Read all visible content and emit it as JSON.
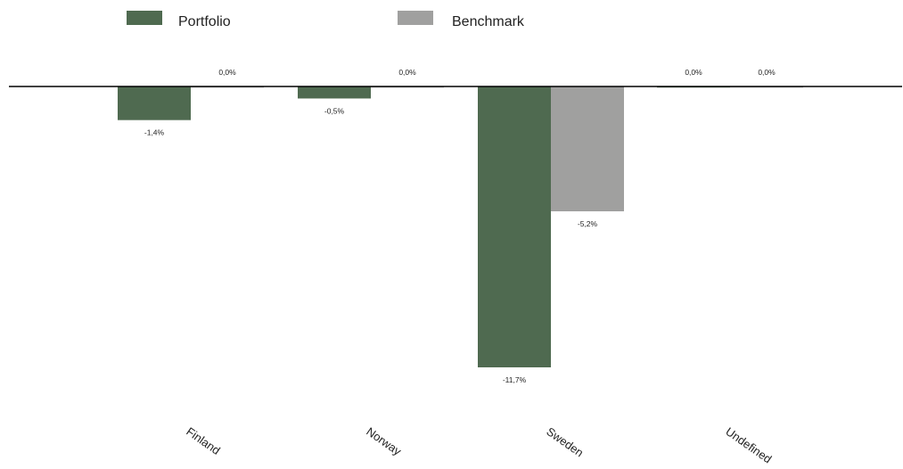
{
  "chart_data": {
    "type": "bar",
    "title": "",
    "xlabel": "",
    "ylabel": "",
    "categories": [
      "Finland",
      "Norway",
      "Sweden",
      "Undefined"
    ],
    "series": [
      {
        "name": "Portfolio",
        "color": "#4f6a50",
        "values": [
          -1.4,
          -0.5,
          -11.7,
          0.0
        ],
        "labels": [
          "-1,4%",
          "-0,5%",
          "-11,7%",
          "0,0%"
        ]
      },
      {
        "name": "Benchmark",
        "color": "#a0a09f",
        "values": [
          0.0,
          0.0,
          -5.2,
          0.0
        ],
        "labels": [
          "0,0%",
          "0,0%",
          "-5,2%",
          "0,0%"
        ]
      }
    ],
    "ylim": [
      -11.7,
      0
    ],
    "grid": false,
    "legend_position": "top-left"
  }
}
